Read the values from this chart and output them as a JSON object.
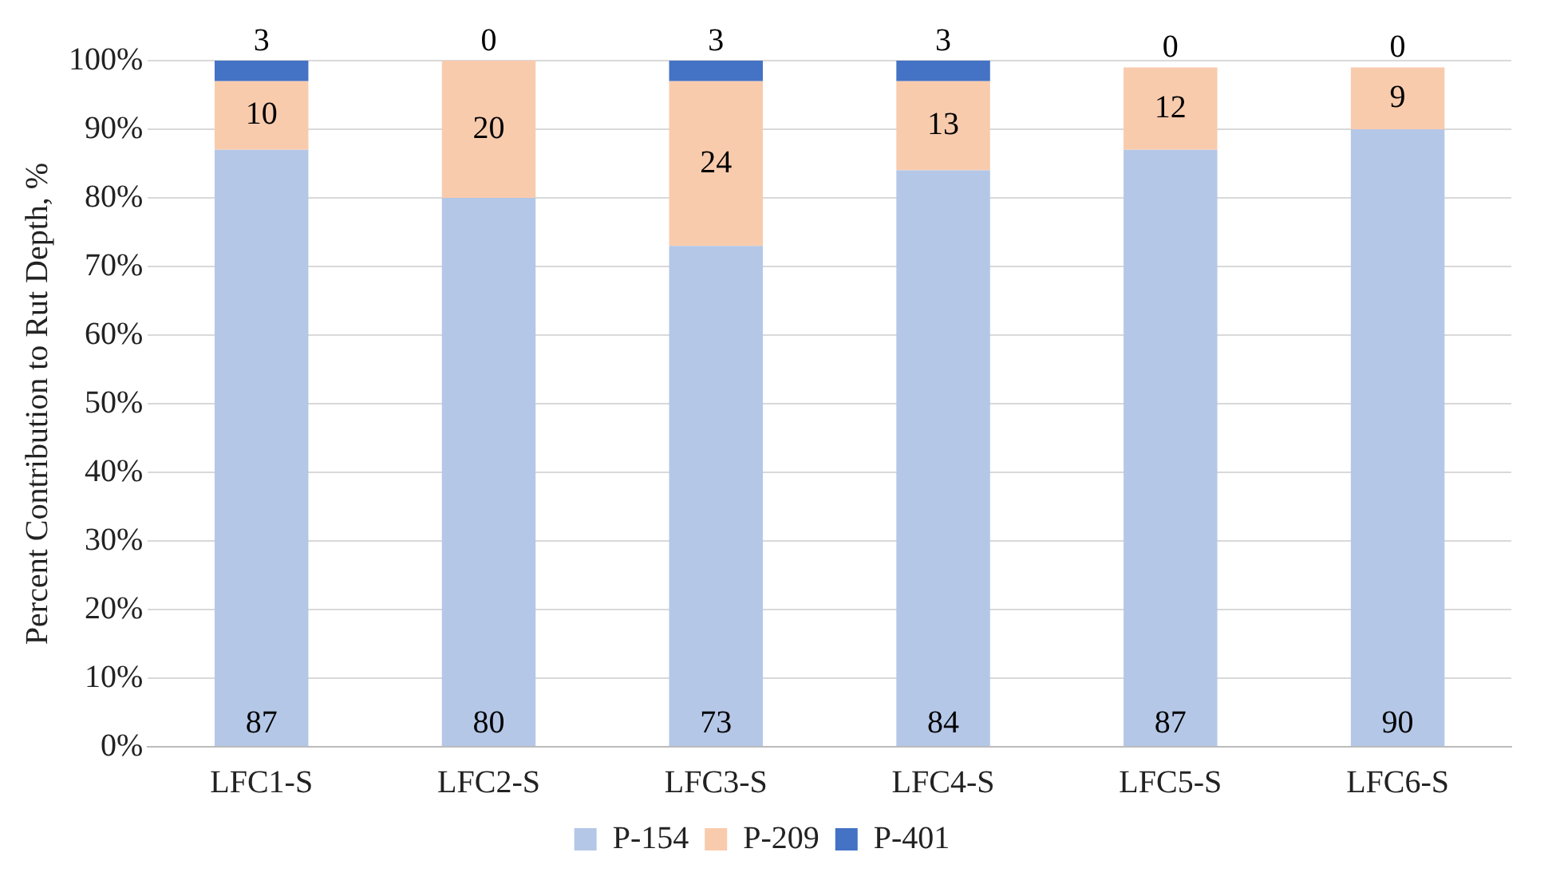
{
  "chart_data": {
    "type": "bar",
    "stacked": true,
    "ylabel": "Percent Contribution to Rut Depth, %",
    "categories": [
      "LFC1-S",
      "LFC2-S",
      "LFC3-S",
      "LFC4-S",
      "LFC5-S",
      "LFC6-S"
    ],
    "series": [
      {
        "name": "P-154",
        "color": "#b4c7e7",
        "values": [
          87,
          80,
          73,
          84,
          87,
          90
        ]
      },
      {
        "name": "P-209",
        "color": "#f8cbad",
        "values": [
          10,
          20,
          24,
          13,
          12,
          9
        ]
      },
      {
        "name": "P-401",
        "color": "#4472c4",
        "values": [
          3,
          0,
          3,
          3,
          0,
          0
        ]
      }
    ],
    "ylim": [
      0,
      100
    ],
    "yticks": [
      {
        "value": 0,
        "label": "0%"
      },
      {
        "value": 10,
        "label": "10%"
      },
      {
        "value": 20,
        "label": "20%"
      },
      {
        "value": 30,
        "label": "30%"
      },
      {
        "value": 40,
        "label": "40%"
      },
      {
        "value": 50,
        "label": "50%"
      },
      {
        "value": 60,
        "label": "60%"
      },
      {
        "value": 70,
        "label": "70%"
      },
      {
        "value": 80,
        "label": "80%"
      },
      {
        "value": 90,
        "label": "90%"
      },
      {
        "value": 100,
        "label": "100%"
      }
    ],
    "grid": "y",
    "legend": "bottom",
    "data_labels": true
  }
}
